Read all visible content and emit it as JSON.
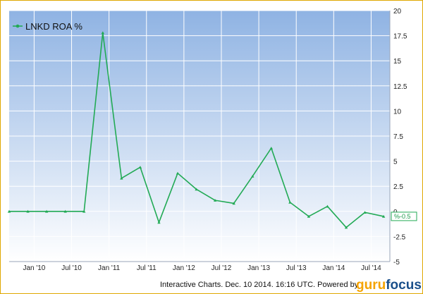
{
  "chart_data": {
    "type": "line",
    "series": [
      {
        "name": "LNKD ROA %",
        "color": "#22aa55",
        "x": [
          "2009-09",
          "2009-12",
          "2010-03",
          "2010-06",
          "2010-09",
          "2010-12",
          "2011-03",
          "2011-06",
          "2011-09",
          "2011-12",
          "2012-03",
          "2012-06",
          "2012-09",
          "2012-12",
          "2013-03",
          "2013-06",
          "2013-09",
          "2013-12",
          "2014-03",
          "2014-06",
          "2014-09"
        ],
        "values": [
          0,
          0,
          0,
          0,
          0,
          17.8,
          3.3,
          4.4,
          -1.1,
          3.8,
          2.2,
          1.1,
          0.8,
          3.5,
          6.3,
          0.9,
          -0.5,
          0.5,
          -1.6,
          -0.1,
          -0.5
        ]
      }
    ],
    "x_ticks": [
      "Jan '10",
      "Jul '10",
      "Jan '11",
      "Jul '11",
      "Jan '12",
      "Jul '12",
      "Jan '13",
      "Jul '13",
      "Jan '14",
      "Jul '14"
    ],
    "x_tick_dates": [
      "2010-01",
      "2010-07",
      "2011-01",
      "2011-07",
      "2012-01",
      "2012-07",
      "2013-01",
      "2013-07",
      "2014-01",
      "2014-07"
    ],
    "x_range": [
      "2009-09",
      "2014-10"
    ],
    "y_ticks": [
      "20",
      "17.5",
      "15",
      "12.5",
      "10",
      "7.5",
      "5",
      "2.5",
      "0",
      "-2.5",
      "-5"
    ],
    "ylim": [
      -5,
      20
    ],
    "y_axis_side": "right",
    "grid": true,
    "legend": "top-left",
    "last_value_label": "%-0.5",
    "background": {
      "top": "#8fb3e3",
      "bottom": "#ffffff"
    }
  },
  "footer": {
    "caption": "Interactive Charts. Dec. 10 2014. 16:16 UTC. Powered by",
    "brand_part1": "guru",
    "brand_part2": "focus"
  }
}
